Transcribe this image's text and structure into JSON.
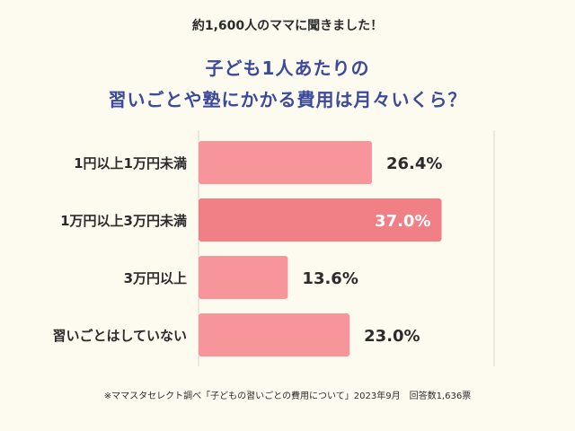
{
  "intro": "約1,600人のママに聞きました！",
  "title_line1": "子ども1人あたりの",
  "title_line2": "習いごとや塾にかかる費用は月々いくら？",
  "footnote": "※ママスタセレクト調べ「子どもの習いごとの費用について」2023年9月　回答数1,636票",
  "colors": {
    "bar": "#f7959a",
    "bar_highlight": "#f17f86",
    "title": "#3b4a9a",
    "grid": "#d9d6cb",
    "background": "#fdfbf0"
  },
  "chart_data": {
    "type": "bar",
    "orientation": "horizontal",
    "categories": [
      "1円以上1万円未満",
      "1万円以上3万円未満",
      "3万円以上",
      "習いごとはしていない"
    ],
    "values": [
      26.4,
      37.0,
      13.6,
      23.0
    ],
    "value_labels": [
      "26.4%",
      "37.0%",
      "13.6%",
      "23.0%"
    ],
    "highlight_index": 1,
    "xlim": [
      0,
      45
    ],
    "grid": true,
    "gridlines": [
      0,
      45
    ]
  }
}
